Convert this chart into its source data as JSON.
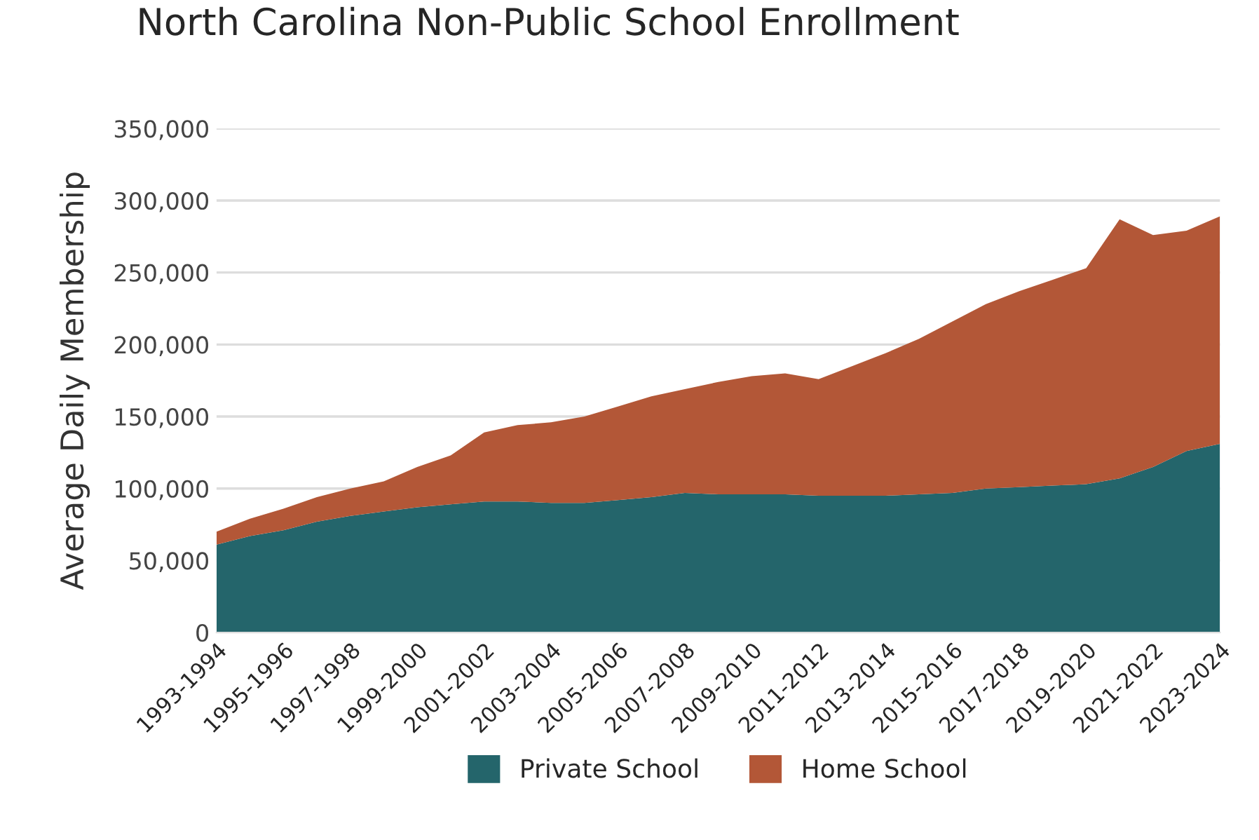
{
  "chart_data": {
    "type": "area",
    "stacked": true,
    "title": "North Carolina Non-Public School Enrollment",
    "ylabel": "Average Daily Membership",
    "categories": [
      "1993-1994",
      null,
      "1995-1996",
      null,
      "1997-1998",
      null,
      "1999-2000",
      null,
      "2001-2002",
      null,
      "2003-2004",
      null,
      "2005-2006",
      null,
      "2007-2008",
      null,
      "2009-2010",
      null,
      "2011-2012",
      null,
      "2013-2014",
      null,
      "2015-2016",
      null,
      "2017-2018",
      null,
      "2019-2020",
      null,
      "2021-2022",
      null,
      "2023-2024"
    ],
    "series": [
      {
        "name": "Private School",
        "color": "#24656b",
        "values": [
          61000,
          67000,
          71000,
          77000,
          81000,
          84000,
          87000,
          89000,
          91000,
          91000,
          90000,
          90000,
          92000,
          94000,
          97000,
          96000,
          96000,
          96000,
          95000,
          95000,
          95000,
          96000,
          97000,
          100000,
          101000,
          102000,
          103000,
          107000,
          115000,
          126000,
          131000
        ]
      },
      {
        "name": "Home School",
        "color": "#b35737",
        "values": [
          9000,
          12000,
          15000,
          17000,
          19000,
          21000,
          28000,
          34000,
          48000,
          53000,
          56000,
          60000,
          65000,
          70000,
          72000,
          78000,
          82000,
          84000,
          81000,
          90000,
          99000,
          108000,
          119000,
          128000,
          136000,
          143000,
          150000,
          180000,
          161000,
          153000,
          158000
        ]
      }
    ],
    "ylim": [
      0,
      350000
    ],
    "yticks": [
      {
        "value": 0,
        "label": "0"
      },
      {
        "value": 50000,
        "label": "50,000"
      },
      {
        "value": 100000,
        "label": "100,000"
      },
      {
        "value": 150000,
        "label": "150,000"
      },
      {
        "value": 200000,
        "label": "200,000"
      },
      {
        "value": 250000,
        "label": "250,000"
      },
      {
        "value": 300000,
        "label": "300,000"
      },
      {
        "value": 350000,
        "label": "350,000"
      }
    ],
    "grid": "y",
    "legend": "bottom"
  }
}
